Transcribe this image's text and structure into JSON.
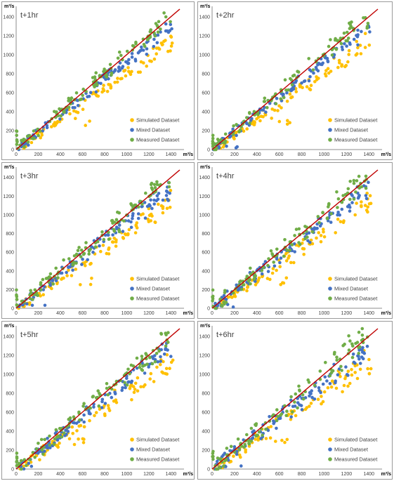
{
  "chart_data": [
    {
      "type": "scatter",
      "title": "t+1hr",
      "spread": 0.9,
      "seed": 11
    },
    {
      "type": "scatter",
      "title": "t+2hr",
      "spread": 1.0,
      "seed": 23
    },
    {
      "type": "scatter",
      "title": "t+3hr",
      "spread": 1.15,
      "seed": 37
    },
    {
      "type": "scatter",
      "title": "t+4hr",
      "spread": 1.2,
      "seed": 41
    },
    {
      "type": "scatter",
      "title": "t+5hr",
      "spread": 1.3,
      "seed": 53
    },
    {
      "type": "scatter",
      "title": "t+6hr",
      "spread": 1.4,
      "seed": 67
    }
  ],
  "common": {
    "x_unit": "m³/s",
    "y_unit": "m³/s",
    "x_ticks": [
      0,
      200,
      400,
      600,
      800,
      1000,
      1200,
      1400
    ],
    "y_ticks": [
      0,
      200,
      400,
      600,
      800,
      1000,
      1200,
      1400
    ],
    "xlim": [
      0,
      1480
    ],
    "ylim": [
      0,
      1480
    ],
    "grid": false,
    "legend_position": "bottom-right",
    "identity_line": {
      "from": [
        0,
        0
      ],
      "to": [
        1480,
        1480
      ],
      "color": "#c00000"
    },
    "series": [
      {
        "name": "Simulated Dataset",
        "color": "#ffc000"
      },
      {
        "name": "Mixed Dataset",
        "color": "#4472c4"
      },
      {
        "name": "Measured Dataset",
        "color": "#70ad47"
      }
    ]
  }
}
